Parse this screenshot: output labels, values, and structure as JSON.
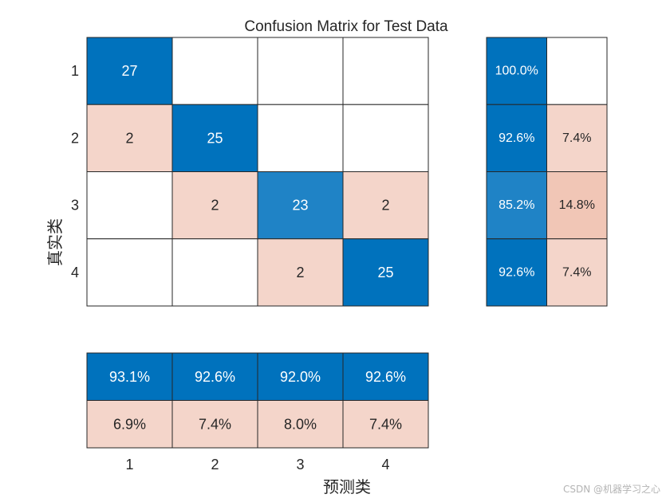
{
  "chart_data": {
    "type": "heatmap",
    "title": "Confusion Matrix for Test Data",
    "xlabel": "预测类",
    "ylabel": "真实类",
    "classes": [
      "1",
      "2",
      "3",
      "4"
    ],
    "matrix": [
      [
        27,
        null,
        null,
        null
      ],
      [
        2,
        25,
        null,
        null
      ],
      [
        null,
        2,
        23,
        2
      ],
      [
        null,
        null,
        2,
        25
      ]
    ],
    "row_summary": {
      "correct": [
        "100.0%",
        "92.6%",
        "85.2%",
        "92.6%"
      ],
      "incorrect": [
        "",
        "7.4%",
        "14.8%",
        "7.4%"
      ]
    },
    "column_summary": {
      "correct": [
        "93.1%",
        "92.6%",
        "92.0%",
        "92.6%"
      ],
      "incorrect": [
        "6.9%",
        "7.4%",
        "8.0%",
        "7.4%"
      ]
    },
    "colors": {
      "correct_strong": "#0072bd",
      "correct_mid": "#1f83c6",
      "incorrect_light": "#f4d5ca",
      "incorrect_mid": "#f1c6b6",
      "border": "#262626",
      "text_dark": "#262626",
      "text_light": "#ffffff"
    }
  },
  "watermark": "CSDN @机器学习之心"
}
